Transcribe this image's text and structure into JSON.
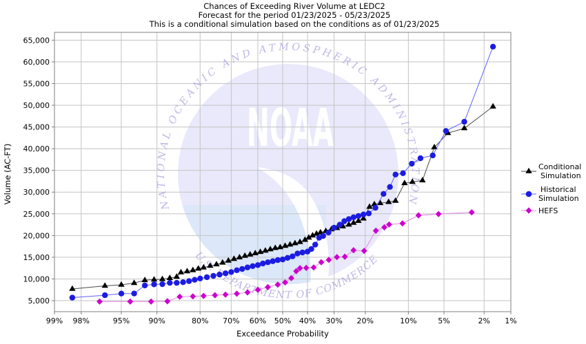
{
  "titles": {
    "line1": "Chances of Exceeding River Volume at LEDC2",
    "line2": "Forecast for the period 01/23/2025 - 05/23/2025",
    "line3": "This is a conditional simulation based on the conditions as of 01/23/2025"
  },
  "colors": {
    "grid": "#c3c3c3",
    "spine": "#7f7f7f",
    "background": "#ffffff",
    "text": "#000000"
  },
  "watermark": {
    "arc_text_top": "NATIONAL OCEANIC AND ATMOSPHERIC ADMINISTRATION",
    "arc_text_bottom": "U.S. DEPARTMENT OF COMMERCE",
    "center_text": "NOAA",
    "disk_color": "#e9e9fb",
    "sea_color": "#dce8f9",
    "ring_text_color": "#b5ace0",
    "letter_color": "#ffffff"
  },
  "legend": {
    "items": [
      {
        "name": "Conditional Simulation",
        "lines": [
          "Conditional",
          "Simulation"
        ],
        "marker": "triangle"
      },
      {
        "name": "Historical Simulation",
        "lines": [
          "Historical",
          "Simulation"
        ],
        "marker": "circle"
      },
      {
        "name": "HEFS",
        "lines": [
          "HEFS"
        ],
        "marker": "diamond"
      }
    ]
  },
  "chart_data": {
    "type": "line",
    "x_axis": {
      "label": "Exceedance Probability",
      "scale": "normal_probability",
      "unit": "percent",
      "range": [
        99,
        1
      ],
      "ticks": [
        99,
        98,
        95,
        90,
        80,
        70,
        60,
        50,
        40,
        30,
        20,
        10,
        5,
        2,
        1
      ],
      "tick_labels": [
        "99%",
        "98%",
        "95%",
        "90%",
        "80%",
        "70%",
        "60%",
        "50%",
        "40%",
        "30%",
        "20%",
        "10%",
        "5%",
        "2%",
        "1%"
      ]
    },
    "y_axis": {
      "label": "Volume (AC-FT)",
      "unit": "AC-FT",
      "range": [
        2465,
        66800
      ],
      "ticks": [
        5000,
        10000,
        15000,
        20000,
        25000,
        30000,
        35000,
        40000,
        45000,
        50000,
        55000,
        60000,
        65000
      ],
      "tick_labels": [
        "5,000",
        "10,000",
        "15,000",
        "20,000",
        "25,000",
        "30,000",
        "35,000",
        "40,000",
        "45,000",
        "50,000",
        "55,000",
        "60,000",
        "65,000"
      ]
    },
    "grid": true,
    "legend_position": "right-center",
    "series": [
      {
        "name": "Conditional Simulation",
        "marker": "triangle",
        "marker_color": "#000000",
        "line_color": "#4a4a4a",
        "points": [
          [
            98.4,
            7700
          ],
          [
            96.5,
            8400
          ],
          [
            95,
            8650
          ],
          [
            93.5,
            9050
          ],
          [
            92,
            9700
          ],
          [
            90.5,
            9850
          ],
          [
            89,
            9950
          ],
          [
            87.5,
            10200
          ],
          [
            86,
            10500
          ],
          [
            85,
            11500
          ],
          [
            83.5,
            11750
          ],
          [
            82,
            12000
          ],
          [
            80.5,
            12350
          ],
          [
            79,
            12600
          ],
          [
            77,
            13000
          ],
          [
            75,
            13350
          ],
          [
            73,
            13750
          ],
          [
            71,
            14200
          ],
          [
            69,
            14600
          ],
          [
            67,
            14950
          ],
          [
            65,
            15300
          ],
          [
            63,
            15600
          ],
          [
            61,
            15900
          ],
          [
            59,
            16200
          ],
          [
            57,
            16500
          ],
          [
            55,
            16800
          ],
          [
            53,
            17100
          ],
          [
            51,
            17300
          ],
          [
            49,
            17600
          ],
          [
            47,
            17900
          ],
          [
            45,
            18200
          ],
          [
            43,
            18500
          ],
          [
            41,
            19000
          ],
          [
            39.5,
            19500
          ],
          [
            38,
            20000
          ],
          [
            36.5,
            20400
          ],
          [
            35,
            20700
          ],
          [
            33,
            21000
          ],
          [
            31,
            21400
          ],
          [
            29,
            21700
          ],
          [
            27,
            22100
          ],
          [
            25,
            22500
          ],
          [
            23.5,
            22900
          ],
          [
            22,
            23350
          ],
          [
            20.5,
            23900
          ],
          [
            18.8,
            26600
          ],
          [
            17.5,
            27200
          ],
          [
            16,
            27450
          ],
          [
            14,
            27700
          ],
          [
            12.5,
            28000
          ],
          [
            10.7,
            32050
          ],
          [
            9.3,
            32350
          ],
          [
            7.7,
            32700
          ],
          [
            6.1,
            40300
          ],
          [
            4.6,
            43600
          ],
          [
            3.2,
            44700
          ],
          [
            1.6,
            49700
          ]
        ]
      },
      {
        "name": "Historical Simulation",
        "marker": "circle",
        "marker_color": "#1c1ce0",
        "line_color": "#5f5fff",
        "points": [
          [
            98.4,
            5700
          ],
          [
            96.5,
            6250
          ],
          [
            95,
            6630
          ],
          [
            93.5,
            6650
          ],
          [
            92,
            8500
          ],
          [
            90.5,
            8750
          ],
          [
            89,
            8800
          ],
          [
            87.5,
            9100
          ],
          [
            86,
            9100
          ],
          [
            84.5,
            9250
          ],
          [
            83,
            9500
          ],
          [
            81.5,
            9800
          ],
          [
            80,
            10100
          ],
          [
            78,
            10400
          ],
          [
            76,
            10700
          ],
          [
            74,
            11000
          ],
          [
            72,
            11300
          ],
          [
            70,
            11600
          ],
          [
            68,
            12000
          ],
          [
            66,
            12300
          ],
          [
            64,
            12650
          ],
          [
            62,
            12950
          ],
          [
            60,
            13200
          ],
          [
            58,
            13550
          ],
          [
            56,
            13850
          ],
          [
            54,
            14100
          ],
          [
            52,
            14350
          ],
          [
            50,
            14500
          ],
          [
            48,
            14850
          ],
          [
            46,
            15200
          ],
          [
            44,
            15850
          ],
          [
            42,
            16100
          ],
          [
            40,
            16300
          ],
          [
            38.5,
            16900
          ],
          [
            37,
            17900
          ],
          [
            35.5,
            19500
          ],
          [
            34,
            19900
          ],
          [
            32,
            20700
          ],
          [
            30,
            21800
          ],
          [
            28,
            22500
          ],
          [
            26.5,
            23300
          ],
          [
            25,
            23800
          ],
          [
            23.5,
            24200
          ],
          [
            22,
            24500
          ],
          [
            20.5,
            24850
          ],
          [
            19,
            25100
          ],
          [
            17.2,
            26400
          ],
          [
            15.2,
            29600
          ],
          [
            13.7,
            31200
          ],
          [
            12.5,
            34050
          ],
          [
            11,
            34350
          ],
          [
            9.4,
            36550
          ],
          [
            8,
            37800
          ],
          [
            6.3,
            38450
          ],
          [
            4.8,
            44100
          ],
          [
            3.2,
            46200
          ],
          [
            1.6,
            63500
          ]
        ]
      },
      {
        "name": "HEFS",
        "marker": "diamond",
        "marker_color": "#cc00cc",
        "line_color": "#ec80ec",
        "points": [
          [
            96.9,
            4790
          ],
          [
            94,
            4790
          ],
          [
            91,
            4790
          ],
          [
            88,
            4850
          ],
          [
            85.3,
            5900
          ],
          [
            82,
            5980
          ],
          [
            79,
            6100
          ],
          [
            75.5,
            6250
          ],
          [
            72,
            6400
          ],
          [
            68,
            6600
          ],
          [
            64,
            6900
          ],
          [
            60,
            7500
          ],
          [
            56,
            8100
          ],
          [
            52,
            8700
          ],
          [
            49,
            9200
          ],
          [
            46.5,
            10200
          ],
          [
            44.5,
            11800
          ],
          [
            43,
            12500
          ],
          [
            40.5,
            12540
          ],
          [
            37.6,
            12650
          ],
          [
            34.7,
            13860
          ],
          [
            31.9,
            14400
          ],
          [
            29,
            15030
          ],
          [
            26.3,
            15130
          ],
          [
            23.5,
            16620
          ],
          [
            20.3,
            16480
          ],
          [
            17.1,
            21100
          ],
          [
            15,
            21900
          ],
          [
            13.9,
            22540
          ],
          [
            11.1,
            22800
          ],
          [
            8.3,
            24650
          ],
          [
            5.6,
            24950
          ],
          [
            2.7,
            25350
          ]
        ]
      }
    ]
  }
}
